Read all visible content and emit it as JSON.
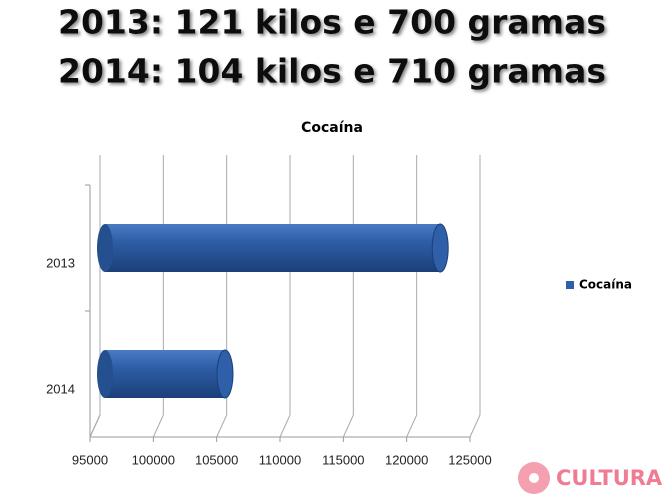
{
  "header": {
    "lines": [
      "2013: 121 kilos e 700 gramas",
      "2014: 104 kilos e 710 gramas"
    ]
  },
  "chart_data": {
    "type": "bar",
    "orientation": "horizontal",
    "title": "Cocaína",
    "categories": [
      "2013",
      "2014"
    ],
    "series": [
      {
        "name": "Cocaína",
        "color": "#2e5fa8",
        "values": [
          121700,
          104710
        ]
      }
    ],
    "xlim": [
      95000,
      125000
    ],
    "xticks": [
      95000,
      100000,
      105000,
      110000,
      115000,
      120000,
      125000
    ],
    "grid": true,
    "legend": "right"
  },
  "logo": {
    "text": "CULTURA"
  }
}
